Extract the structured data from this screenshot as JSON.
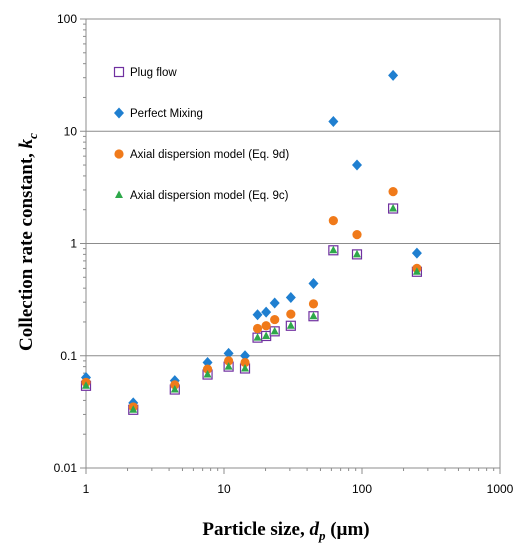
{
  "chart_data": {
    "type": "scatter",
    "title": "",
    "xlabel": {
      "main": "Particle size, ",
      "var": "d",
      "sub": "p",
      "unit": " (µm)"
    },
    "ylabel": {
      "main": "Collection rate constant, ",
      "var": "k",
      "sub": "c"
    },
    "x_scale": "log",
    "y_scale": "log",
    "xlim": [
      1,
      1000
    ],
    "ylim": [
      0.01,
      100
    ],
    "x_ticks": [
      "1",
      "10",
      "100",
      "1000"
    ],
    "y_ticks": [
      "0.01",
      "0.1",
      "1",
      "10",
      "100"
    ],
    "grid": "horizontal major",
    "legend_position": "top-left inside",
    "series": [
      {
        "name": "Plug flow",
        "marker": "open-square",
        "color": "#7030a0",
        "x": [
          1,
          2.2,
          4.4,
          7.6,
          10.8,
          14.2,
          17.5,
          20.2,
          23.3,
          30.5,
          44.5,
          62,
          92,
          168,
          250
        ],
        "y": [
          0.054,
          0.033,
          0.05,
          0.068,
          0.08,
          0.077,
          0.145,
          0.15,
          0.165,
          0.185,
          0.225,
          0.87,
          0.8,
          2.05,
          0.56
        ]
      },
      {
        "name": "Perfect Mixing",
        "marker": "diamond",
        "color": "#1f7fd0",
        "x": [
          1,
          2.2,
          4.4,
          7.6,
          10.8,
          14.2,
          17.5,
          20.2,
          23.3,
          30.5,
          44.5,
          62,
          92,
          168,
          250
        ],
        "y": [
          0.064,
          0.038,
          0.06,
          0.087,
          0.105,
          0.1,
          0.232,
          0.245,
          0.295,
          0.33,
          0.44,
          12.2,
          5,
          31.5,
          0.82
        ]
      },
      {
        "name": "Axial dispersion model (Eq. 9d)",
        "marker": "circle",
        "color": "#f07a1a",
        "x": [
          1,
          2.2,
          4.4,
          7.6,
          10.8,
          14.2,
          17.5,
          20.2,
          23.3,
          30.5,
          44.5,
          62,
          92,
          168,
          250
        ],
        "y": [
          0.058,
          0.035,
          0.055,
          0.076,
          0.09,
          0.087,
          0.175,
          0.185,
          0.21,
          0.235,
          0.29,
          1.6,
          1.2,
          2.9,
          0.6
        ]
      },
      {
        "name": "Axial dispersion model (Eq. 9c)",
        "marker": "triangle",
        "color": "#2ea84a",
        "x": [
          1,
          2.2,
          4.4,
          7.6,
          10.8,
          14.2,
          17.5,
          20.2,
          23.3,
          30.5,
          44.5,
          62,
          92,
          168,
          250
        ],
        "y": [
          0.054,
          0.033,
          0.05,
          0.068,
          0.08,
          0.077,
          0.145,
          0.15,
          0.165,
          0.185,
          0.225,
          0.87,
          0.8,
          2.05,
          0.56
        ]
      }
    ]
  }
}
